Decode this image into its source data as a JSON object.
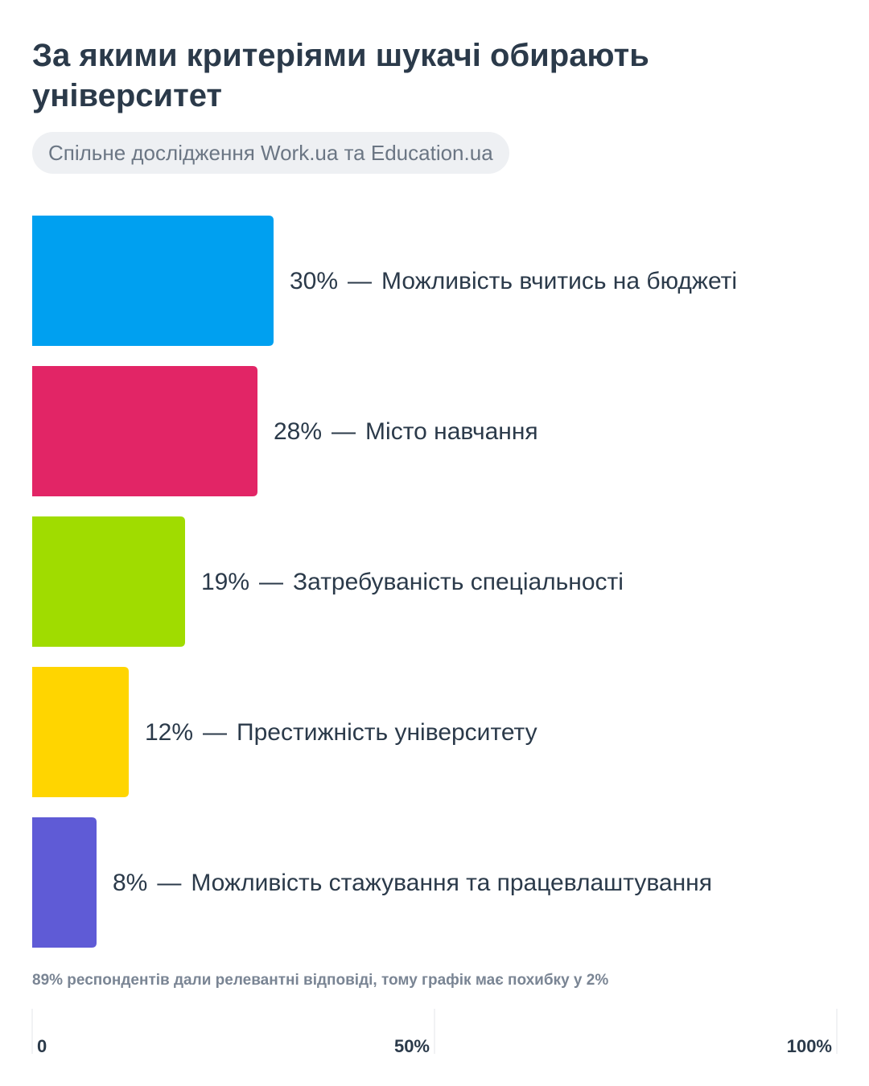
{
  "chart_data": {
    "type": "bar",
    "orientation": "horizontal",
    "title": "За якими критеріями шукачі обирають університет",
    "subtitle": "Спільне дослідження Work.ua та Education.ua",
    "categories": [
      "Можливість вчитись на бюджеті",
      "Місто навчання",
      "Затребуваність спеціальності",
      "Престижність університету",
      "Можливість стажування та працевлаштування"
    ],
    "values": [
      30,
      28,
      19,
      12,
      8
    ],
    "value_labels": [
      "30%",
      "28%",
      "19%",
      "12%",
      "8%"
    ],
    "label_separator": "—",
    "colors": [
      "#00a0f0",
      "#e22566",
      "#a0dc00",
      "#ffd500",
      "#5f5bd6"
    ],
    "annotation": "89% респондентів дали релевантні відповіді, тому графік має похибку у 2%",
    "xlim": [
      0,
      100
    ],
    "xticks": [
      0,
      {
        "value": 50,
        "label": "50%"
      },
      {
        "value": 100,
        "label": "100%"
      }
    ]
  }
}
